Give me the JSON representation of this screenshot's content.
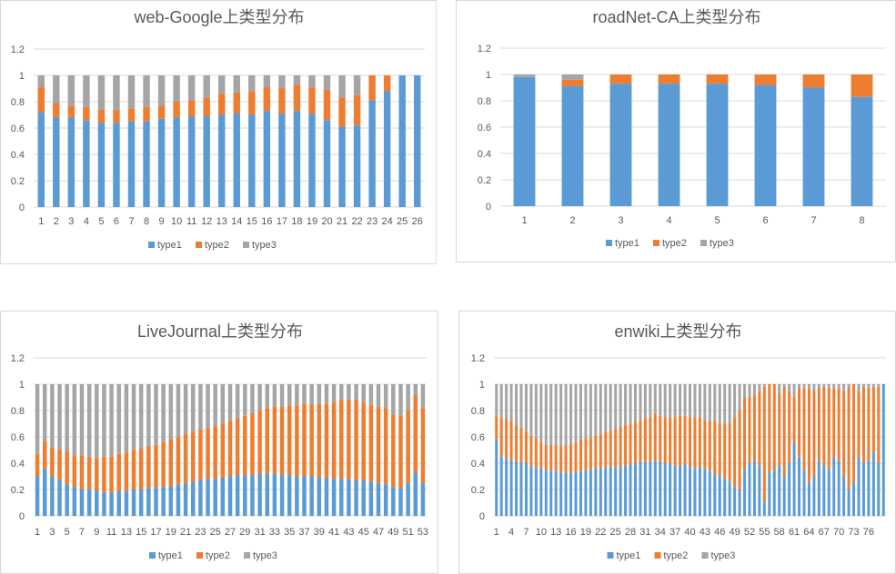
{
  "chart_data": [
    {
      "type": "bar",
      "stacked": true,
      "title": "web-Google上类型分布",
      "colors": [
        "#5b9bd5",
        "#ed7d31",
        "#a5a5a5"
      ],
      "ylim": [
        0,
        1.2
      ],
      "yticks": [
        "0",
        "0.2",
        "0.4",
        "0.6",
        "0.8",
        "1",
        "1.2"
      ],
      "grid": true,
      "legend": "bottom",
      "categories": [
        "1",
        "2",
        "3",
        "4",
        "5",
        "6",
        "7",
        "8",
        "9",
        "10",
        "11",
        "12",
        "13",
        "14",
        "15",
        "16",
        "17",
        "18",
        "19",
        "20",
        "21",
        "22",
        "23",
        "24",
        "25",
        "26"
      ],
      "tick_labels": [
        "1",
        "2",
        "3",
        "4",
        "5",
        "6",
        "7",
        "8",
        "9",
        "10",
        "11",
        "12",
        "13",
        "14",
        "15",
        "16",
        "17",
        "18",
        "19",
        "20",
        "21",
        "22",
        "23",
        "24",
        "25",
        "26"
      ],
      "series": [
        {
          "name": "type1",
          "values": [
            0.72,
            0.68,
            0.68,
            0.66,
            0.64,
            0.64,
            0.65,
            0.65,
            0.67,
            0.68,
            0.69,
            0.69,
            0.7,
            0.71,
            0.7,
            0.73,
            0.71,
            0.73,
            0.71,
            0.66,
            0.61,
            0.62,
            0.81,
            0.88,
            1.0,
            1.0
          ]
        },
        {
          "name": "type2",
          "values": [
            0.19,
            0.11,
            0.09,
            0.1,
            0.1,
            0.1,
            0.1,
            0.11,
            0.1,
            0.12,
            0.12,
            0.14,
            0.16,
            0.16,
            0.18,
            0.18,
            0.19,
            0.2,
            0.2,
            0.23,
            0.22,
            0.23,
            0.19,
            0.12,
            0.0,
            0.0
          ]
        },
        {
          "name": "type3",
          "values": [
            0.09,
            0.21,
            0.23,
            0.24,
            0.26,
            0.26,
            0.25,
            0.24,
            0.23,
            0.2,
            0.19,
            0.17,
            0.14,
            0.13,
            0.12,
            0.09,
            0.1,
            0.07,
            0.09,
            0.11,
            0.17,
            0.15,
            0.0,
            0.0,
            0.0,
            0.0
          ]
        }
      ]
    },
    {
      "type": "bar",
      "stacked": true,
      "title": "roadNet-CA上类型分布",
      "colors": [
        "#5b9bd5",
        "#ed7d31",
        "#a5a5a5"
      ],
      "ylim": [
        0,
        1.2
      ],
      "yticks": [
        "0",
        "0.2",
        "0.4",
        "0.6",
        "0.8",
        "1",
        "1.2"
      ],
      "grid": true,
      "legend": "bottom",
      "categories": [
        "1",
        "2",
        "3",
        "4",
        "5",
        "6",
        "7",
        "8"
      ],
      "tick_labels": [
        "1",
        "2",
        "3",
        "4",
        "5",
        "6",
        "7",
        "8"
      ],
      "series": [
        {
          "name": "type1",
          "values": [
            0.98,
            0.91,
            0.93,
            0.93,
            0.93,
            0.92,
            0.9,
            0.83
          ]
        },
        {
          "name": "type2",
          "values": [
            0.0,
            0.05,
            0.07,
            0.07,
            0.07,
            0.08,
            0.1,
            0.17
          ]
        },
        {
          "name": "type3",
          "values": [
            0.02,
            0.04,
            0.0,
            0.0,
            0.0,
            0.0,
            0.0,
            0.0
          ]
        }
      ]
    },
    {
      "type": "bar",
      "stacked": true,
      "title": "LiveJournal上类型分布",
      "colors": [
        "#5b9bd5",
        "#ed7d31",
        "#a5a5a5"
      ],
      "ylim": [
        0,
        1.2
      ],
      "yticks": [
        "0",
        "0.2",
        "0.4",
        "0.6",
        "0.8",
        "1",
        "1.2"
      ],
      "grid": true,
      "legend": "bottom",
      "categories": [
        "1",
        "2",
        "3",
        "4",
        "5",
        "6",
        "7",
        "8",
        "9",
        "10",
        "11",
        "12",
        "13",
        "14",
        "15",
        "16",
        "17",
        "18",
        "19",
        "20",
        "21",
        "22",
        "23",
        "24",
        "25",
        "26",
        "27",
        "28",
        "29",
        "30",
        "31",
        "32",
        "33",
        "34",
        "35",
        "36",
        "37",
        "38",
        "39",
        "40",
        "41",
        "42",
        "43",
        "44",
        "45",
        "46",
        "47",
        "48",
        "49",
        "50",
        "51",
        "52",
        "53"
      ],
      "tick_labels": [
        "1",
        "",
        "3",
        "",
        "5",
        "",
        "7",
        "",
        "9",
        "",
        "11",
        "",
        "13",
        "",
        "15",
        "",
        "17",
        "",
        "19",
        "",
        "21",
        "",
        "23",
        "",
        "25",
        "",
        "27",
        "",
        "29",
        "",
        "31",
        "",
        "33",
        "",
        "35",
        "",
        "37",
        "",
        "39",
        "",
        "41",
        "",
        "43",
        "",
        "45",
        "",
        "47",
        "",
        "49",
        "",
        "51",
        "",
        "53"
      ],
      "series": [
        {
          "name": "type1",
          "values": [
            0.3,
            0.36,
            0.3,
            0.27,
            0.24,
            0.22,
            0.2,
            0.2,
            0.19,
            0.18,
            0.18,
            0.19,
            0.19,
            0.2,
            0.2,
            0.21,
            0.21,
            0.22,
            0.23,
            0.24,
            0.25,
            0.26,
            0.27,
            0.28,
            0.28,
            0.29,
            0.3,
            0.31,
            0.31,
            0.31,
            0.32,
            0.32,
            0.32,
            0.31,
            0.31,
            0.3,
            0.3,
            0.3,
            0.29,
            0.29,
            0.28,
            0.28,
            0.28,
            0.27,
            0.27,
            0.26,
            0.25,
            0.24,
            0.22,
            0.21,
            0.25,
            0.33,
            0.25
          ]
        },
        {
          "name": "type2",
          "values": [
            0.17,
            0.21,
            0.22,
            0.23,
            0.25,
            0.24,
            0.26,
            0.25,
            0.25,
            0.27,
            0.27,
            0.28,
            0.29,
            0.3,
            0.31,
            0.32,
            0.33,
            0.34,
            0.35,
            0.36,
            0.37,
            0.38,
            0.39,
            0.39,
            0.4,
            0.41,
            0.42,
            0.43,
            0.45,
            0.47,
            0.48,
            0.5,
            0.51,
            0.52,
            0.53,
            0.54,
            0.55,
            0.55,
            0.56,
            0.56,
            0.58,
            0.6,
            0.6,
            0.61,
            0.59,
            0.58,
            0.58,
            0.58,
            0.55,
            0.55,
            0.55,
            0.59,
            0.57
          ]
        },
        {
          "name": "type3",
          "values": [
            0.53,
            0.43,
            0.48,
            0.5,
            0.51,
            0.54,
            0.54,
            0.55,
            0.56,
            0.55,
            0.55,
            0.53,
            0.52,
            0.5,
            0.49,
            0.47,
            0.46,
            0.44,
            0.42,
            0.4,
            0.38,
            0.36,
            0.34,
            0.33,
            0.32,
            0.3,
            0.28,
            0.26,
            0.24,
            0.22,
            0.2,
            0.18,
            0.17,
            0.17,
            0.16,
            0.16,
            0.15,
            0.15,
            0.15,
            0.15,
            0.14,
            0.12,
            0.12,
            0.12,
            0.14,
            0.16,
            0.17,
            0.18,
            0.23,
            0.24,
            0.2,
            0.08,
            0.18
          ]
        }
      ]
    },
    {
      "type": "bar",
      "stacked": true,
      "title": "enwiki上类型分布",
      "colors": [
        "#5b9bd5",
        "#ed7d31",
        "#a5a5a5"
      ],
      "ylim": [
        0,
        1.2
      ],
      "yticks": [
        "0",
        "0.2",
        "0.4",
        "0.6",
        "0.8",
        "1",
        "1.2"
      ],
      "grid": true,
      "legend": "bottom",
      "categories": [
        "1",
        "2",
        "3",
        "4",
        "5",
        "6",
        "7",
        "8",
        "9",
        "10",
        "11",
        "12",
        "13",
        "14",
        "15",
        "16",
        "17",
        "18",
        "19",
        "20",
        "21",
        "22",
        "23",
        "24",
        "25",
        "26",
        "27",
        "28",
        "29",
        "30",
        "31",
        "32",
        "33",
        "34",
        "35",
        "36",
        "37",
        "38",
        "39",
        "40",
        "41",
        "42",
        "43",
        "44",
        "45",
        "46",
        "47",
        "48",
        "49",
        "50",
        "51",
        "52",
        "53",
        "54",
        "55",
        "56",
        "57",
        "58",
        "59",
        "60",
        "61",
        "62",
        "63",
        "64",
        "65",
        "66",
        "67",
        "68",
        "69",
        "70",
        "71",
        "72",
        "73",
        "74",
        "75",
        "76",
        "77",
        "78",
        "79"
      ],
      "tick_labels": [
        "1",
        "",
        "",
        "4",
        "",
        "",
        "7",
        "",
        "",
        "10",
        "",
        "",
        "13",
        "",
        "",
        "16",
        "",
        "",
        "19",
        "",
        "",
        "22",
        "",
        "",
        "25",
        "",
        "",
        "28",
        "",
        "",
        "31",
        "",
        "",
        "34",
        "",
        "",
        "37",
        "",
        "",
        "40",
        "",
        "",
        "43",
        "",
        "",
        "46",
        "",
        "",
        "49",
        "",
        "",
        "52",
        "",
        "",
        "55",
        "",
        "",
        "58",
        "",
        "",
        "61",
        "",
        "",
        "64",
        "",
        "",
        "67",
        "",
        "",
        "70",
        "",
        "",
        "73",
        "",
        "",
        "76",
        "",
        "",
        ""
      ],
      "series": [
        {
          "name": "type1",
          "values": [
            0.58,
            0.45,
            0.44,
            0.42,
            0.41,
            0.41,
            0.4,
            0.38,
            0.37,
            0.36,
            0.35,
            0.34,
            0.34,
            0.33,
            0.33,
            0.33,
            0.33,
            0.34,
            0.35,
            0.35,
            0.36,
            0.36,
            0.37,
            0.37,
            0.37,
            0.38,
            0.38,
            0.39,
            0.4,
            0.41,
            0.41,
            0.41,
            0.42,
            0.41,
            0.4,
            0.39,
            0.38,
            0.38,
            0.39,
            0.37,
            0.36,
            0.37,
            0.36,
            0.34,
            0.32,
            0.3,
            0.28,
            0.26,
            0.22,
            0.2,
            0.35,
            0.4,
            0.42,
            0.38,
            0.1,
            0.33,
            0.35,
            0.38,
            0.3,
            0.4,
            0.55,
            0.45,
            0.35,
            0.25,
            0.3,
            0.42,
            0.38,
            0.35,
            0.45,
            0.42,
            0.3,
            0.2,
            0.25,
            0.45,
            0.4,
            0.42,
            0.48,
            0.4,
            1.0
          ]
        },
        {
          "name": "type2",
          "values": [
            0.18,
            0.3,
            0.3,
            0.3,
            0.28,
            0.26,
            0.24,
            0.23,
            0.22,
            0.2,
            0.19,
            0.2,
            0.2,
            0.2,
            0.21,
            0.22,
            0.23,
            0.24,
            0.24,
            0.24,
            0.25,
            0.26,
            0.27,
            0.28,
            0.29,
            0.3,
            0.31,
            0.31,
            0.31,
            0.32,
            0.33,
            0.34,
            0.36,
            0.35,
            0.35,
            0.36,
            0.37,
            0.38,
            0.37,
            0.38,
            0.39,
            0.38,
            0.37,
            0.38,
            0.4,
            0.4,
            0.42,
            0.44,
            0.53,
            0.6,
            0.55,
            0.5,
            0.5,
            0.57,
            0.88,
            0.67,
            0.65,
            0.55,
            0.68,
            0.55,
            0.35,
            0.52,
            0.62,
            0.72,
            0.65,
            0.55,
            0.6,
            0.62,
            0.52,
            0.55,
            0.65,
            0.78,
            0.75,
            0.5,
            0.58,
            0.55,
            0.5,
            0.58,
            0.0
          ]
        },
        {
          "name": "type3",
          "values": [
            0.24,
            0.25,
            0.26,
            0.28,
            0.31,
            0.33,
            0.36,
            0.39,
            0.41,
            0.44,
            0.46,
            0.46,
            0.46,
            0.47,
            0.46,
            0.45,
            0.44,
            0.42,
            0.41,
            0.41,
            0.39,
            0.38,
            0.36,
            0.35,
            0.34,
            0.32,
            0.31,
            0.3,
            0.29,
            0.27,
            0.26,
            0.25,
            0.22,
            0.24,
            0.25,
            0.25,
            0.25,
            0.24,
            0.24,
            0.25,
            0.25,
            0.25,
            0.27,
            0.28,
            0.28,
            0.3,
            0.3,
            0.3,
            0.25,
            0.2,
            0.1,
            0.1,
            0.08,
            0.05,
            0.02,
            0.0,
            0.0,
            0.07,
            0.02,
            0.05,
            0.1,
            0.03,
            0.03,
            0.03,
            0.05,
            0.03,
            0.02,
            0.03,
            0.03,
            0.03,
            0.05,
            0.02,
            0.0,
            0.05,
            0.02,
            0.03,
            0.02,
            0.02,
            0.0
          ]
        }
      ]
    }
  ]
}
